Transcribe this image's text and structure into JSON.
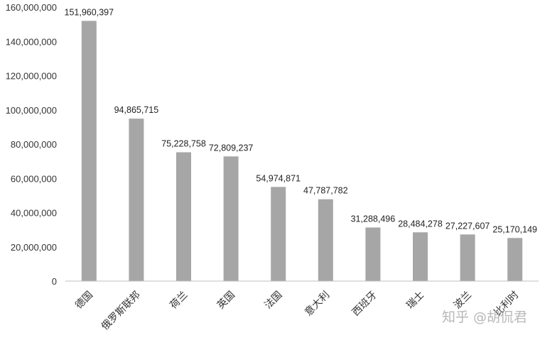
{
  "chart_data": {
    "type": "bar",
    "categories": [
      "德国",
      "俄罗斯联邦",
      "荷兰",
      "英国",
      "法国",
      "意大利",
      "西班牙",
      "瑞士",
      "波兰",
      "比利时"
    ],
    "values": [
      151960397,
      94865715,
      75228758,
      72809237,
      54974871,
      47787782,
      31288496,
      28484278,
      27227607,
      25170149
    ],
    "data_labels": [
      "151,960,397",
      "94,865,715",
      "75,228,758",
      "72,809,237",
      "54,974,871",
      "47,787,782",
      "31,288,496",
      "28,484,278",
      "27,227,607",
      "25,170,149"
    ],
    "y_ticks": [
      "0",
      "20,000,000",
      "40,000,000",
      "60,000,000",
      "80,000,000",
      "100,000,000",
      "120,000,000",
      "140,000,000",
      "160,000,000"
    ],
    "ylim": [
      0,
      160000000
    ],
    "title": "",
    "xlabel": "",
    "ylabel": "",
    "grid": false,
    "legend": "none",
    "bar_color": "#a6a6a6"
  },
  "watermark": "知乎 @胡侃君"
}
